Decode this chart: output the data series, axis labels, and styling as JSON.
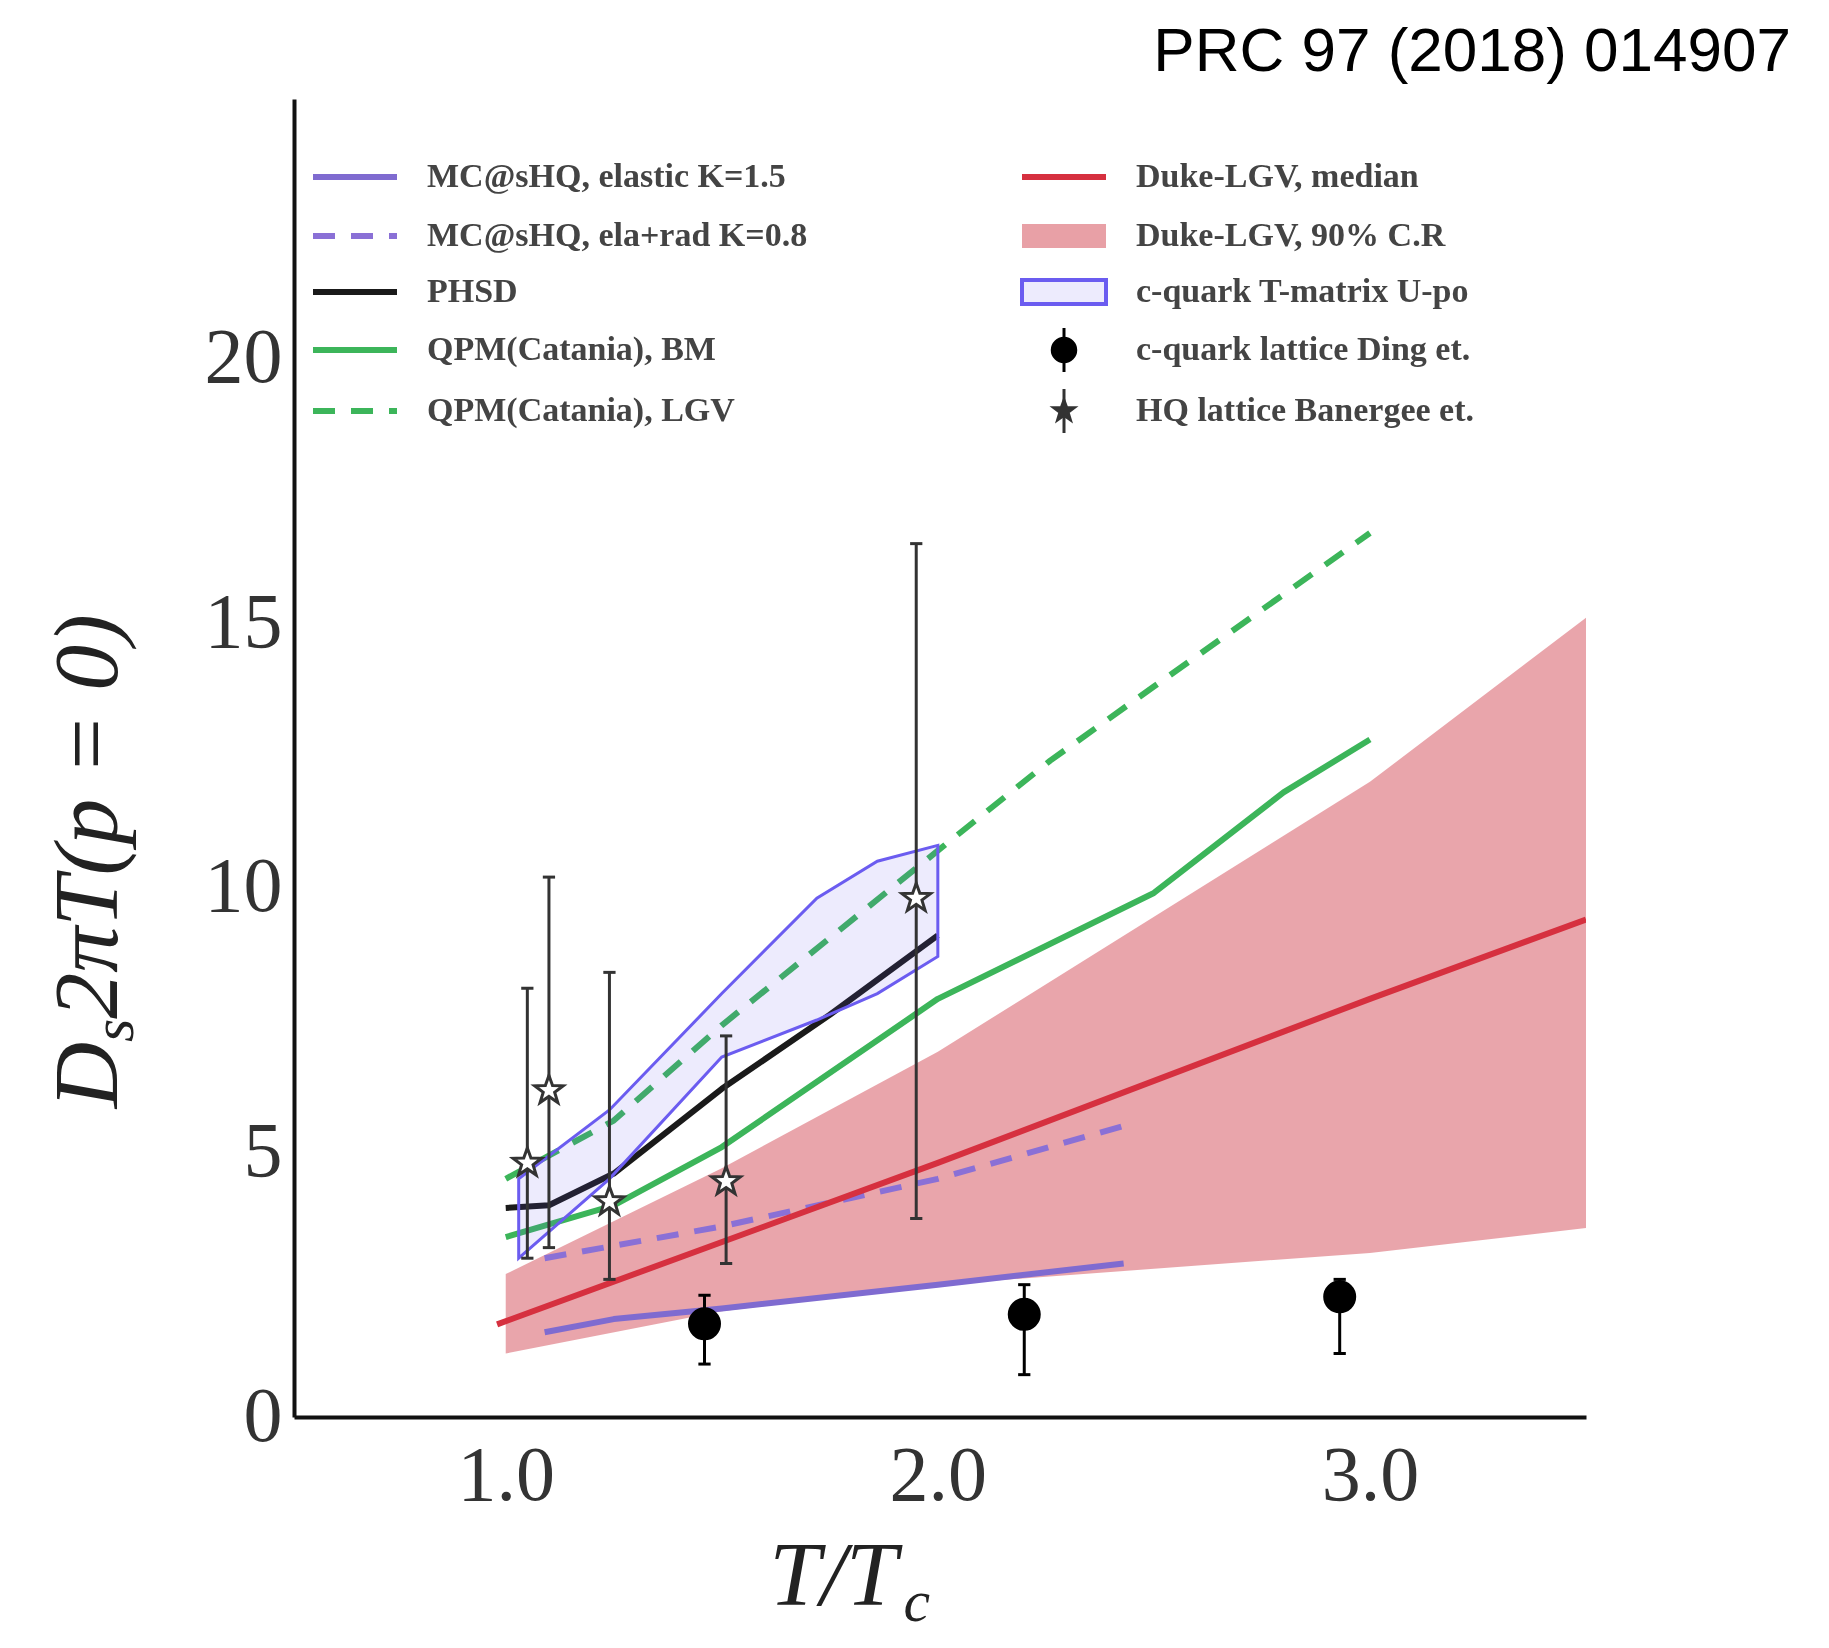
{
  "chart_data": {
    "type": "line",
    "xlabel": "T/T$_{c}$",
    "ylabel": "D$_{s}$2πT(p = 0)",
    "annotations": [
      "PRC 97 (2018) 014907"
    ],
    "xlim": [
      0.51,
      3.5
    ],
    "ylim": [
      0,
      24.9
    ],
    "xticks": [
      {
        "value": 1,
        "label": "1.0"
      },
      {
        "value": 2,
        "label": "2.0"
      },
      {
        "value": 3,
        "label": "3.0"
      }
    ],
    "yticks": [
      0,
      5,
      10,
      15,
      20
    ],
    "grid": false,
    "legend": "top",
    "series": [
      {
        "name": "MC@sHQ, elastic K=1.5",
        "line_style": "solid",
        "color": "#7f6bd0",
        "x": [
          1.09,
          1.25,
          1.5,
          2.0,
          2.43
        ],
        "values": [
          1.6,
          1.85,
          2.05,
          2.5,
          2.9
        ]
      },
      {
        "name": "MC@sHQ, ela+rad K=0.8",
        "line_style": "dashed",
        "color": "#8a70d6",
        "x": [
          1.09,
          1.5,
          2.0,
          2.43
        ],
        "values": [
          3.0,
          3.6,
          4.5,
          5.5
        ]
      },
      {
        "name": "PHSD",
        "line_style": "solid",
        "color": "#1a1a1a",
        "x": [
          1.0,
          1.1,
          1.25,
          1.5,
          1.75,
          2.0
        ],
        "values": [
          3.95,
          4.0,
          4.6,
          6.2,
          7.6,
          9.1
        ]
      },
      {
        "name": "QPM(Catania), BM",
        "line_style": "solid",
        "color": "#3cb55a",
        "x": [
          1.0,
          1.25,
          1.5,
          2.0,
          2.5,
          2.8,
          3.0
        ],
        "values": [
          3.4,
          4.0,
          5.1,
          7.9,
          9.9,
          11.8,
          12.8
        ]
      },
      {
        "name": "QPM(Catania), LGV",
        "line_style": "dashed",
        "color": "#3cb55a",
        "x": [
          1.0,
          1.25,
          1.5,
          2.0,
          2.26,
          2.5,
          3.0
        ],
        "values": [
          4.5,
          5.6,
          7.4,
          10.7,
          12.4,
          13.8,
          16.7
        ]
      },
      {
        "name": "Duke-LGV, median",
        "line_style": "solid",
        "color": "#d6303f",
        "x": [
          0.98,
          2.0,
          3.0,
          3.5
        ],
        "values": [
          1.75,
          4.8,
          7.9,
          9.4
        ]
      },
      {
        "name": "Duke-LGV, 90% C.R",
        "type": "area",
        "color": "#e8a0a6",
        "x": [
          1.0,
          1.5,
          2.0,
          3.0,
          3.5
        ],
        "values": [
          null,
          null,
          null,
          null,
          null
        ],
        "lower": [
          1.2,
          2.0,
          2.5,
          3.1,
          3.57
        ],
        "upper": [
          2.7,
          4.7,
          6.9,
          12.0,
          15.1
        ]
      },
      {
        "name": "c-quark T-matrix U-po",
        "type": "area",
        "line_style": "solid",
        "color": "#6b5cf0",
        "x": [
          1.03,
          1.24,
          1.5,
          1.72,
          1.86,
          2.0
        ],
        "values": [
          null,
          null,
          null,
          null,
          null,
          null
        ],
        "lower": [
          3.0,
          4.5,
          6.8,
          7.5,
          8.0,
          8.7
        ],
        "upper": [
          4.5,
          5.8,
          8.0,
          9.8,
          10.5,
          10.8
        ]
      },
      {
        "name": "c-quark lattice Ding et.",
        "type": "scatter",
        "marker": "circle",
        "color": "#000000",
        "x": [
          1.46,
          2.2,
          2.93
        ],
        "values": [
          1.76,
          1.94,
          2.27
        ],
        "errors": [
          [
            1.0,
            2.3
          ],
          [
            0.8,
            2.5
          ],
          [
            1.2,
            2.6
          ]
        ]
      },
      {
        "name": "HQ lattice Banergee et.",
        "type": "scatter",
        "marker": "star",
        "color": "#333333",
        "x": [
          1.05,
          1.1,
          1.24,
          1.51,
          1.95
        ],
        "values": [
          4.8,
          6.17,
          4.07,
          4.45,
          9.8
        ],
        "errors": [
          [
            3.0,
            8.1
          ],
          [
            3.2,
            10.2
          ],
          [
            2.6,
            8.4
          ],
          [
            2.9,
            7.2
          ],
          [
            3.75,
            16.5
          ]
        ]
      }
    ]
  }
}
